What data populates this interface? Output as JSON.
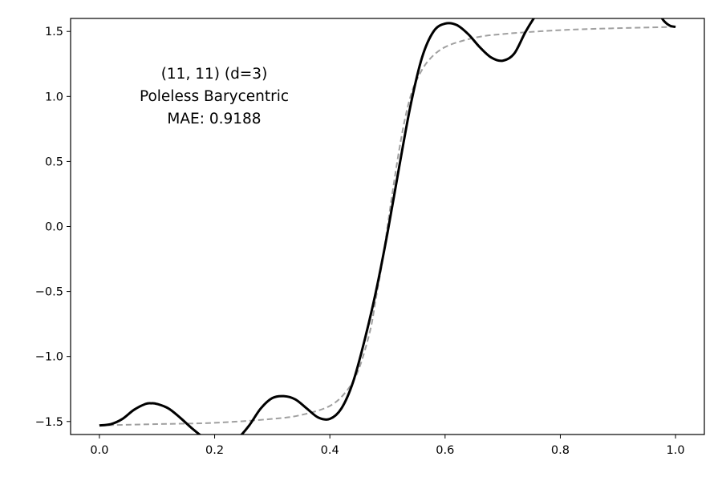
{
  "chart_data": {
    "type": "line",
    "title": "",
    "xlabel": "",
    "ylabel": "",
    "xlim": [
      -0.05,
      1.05
    ],
    "ylim": [
      -1.6,
      1.6
    ],
    "grid": false,
    "x_ticks": [
      0.0,
      0.2,
      0.4,
      0.6,
      0.8,
      1.0
    ],
    "x_tick_labels": [
      "0.0",
      "0.2",
      "0.4",
      "0.6",
      "0.8",
      "1.0"
    ],
    "y_ticks": [
      -1.5,
      -1.0,
      -0.5,
      0.0,
      0.5,
      1.0,
      1.5
    ],
    "y_tick_labels": [
      "−1.5",
      "−1.0",
      "−0.5",
      "0.0",
      "0.5",
      "1.0",
      "1.5"
    ],
    "annotation": [
      "(11, 11) (d=3)",
      "Poleless Barycentric",
      "MAE: 0.9188"
    ],
    "series": [
      {
        "style": "solid",
        "color": "#000000",
        "points": [
          [
            0.0,
            -1.53
          ],
          [
            0.02,
            -1.52
          ],
          [
            0.04,
            -1.48
          ],
          [
            0.06,
            -1.41
          ],
          [
            0.08,
            -1.365
          ],
          [
            0.09,
            -1.36
          ],
          [
            0.1,
            -1.365
          ],
          [
            0.12,
            -1.4
          ],
          [
            0.14,
            -1.47
          ],
          [
            0.16,
            -1.55
          ],
          [
            0.18,
            -1.62
          ],
          [
            0.2,
            -1.67
          ],
          [
            0.22,
            -1.675
          ],
          [
            0.24,
            -1.63
          ],
          [
            0.26,
            -1.53
          ],
          [
            0.28,
            -1.4
          ],
          [
            0.3,
            -1.32
          ],
          [
            0.32,
            -1.305
          ],
          [
            0.34,
            -1.33
          ],
          [
            0.36,
            -1.4
          ],
          [
            0.38,
            -1.47
          ],
          [
            0.4,
            -1.48
          ],
          [
            0.42,
            -1.4
          ],
          [
            0.44,
            -1.2
          ],
          [
            0.46,
            -0.88
          ],
          [
            0.48,
            -0.5
          ],
          [
            0.5,
            -0.05
          ],
          [
            0.52,
            0.45
          ],
          [
            0.54,
            0.93
          ],
          [
            0.56,
            1.3
          ],
          [
            0.58,
            1.5
          ],
          [
            0.6,
            1.56
          ],
          [
            0.62,
            1.55
          ],
          [
            0.64,
            1.48
          ],
          [
            0.66,
            1.38
          ],
          [
            0.68,
            1.3
          ],
          [
            0.7,
            1.275
          ],
          [
            0.72,
            1.33
          ],
          [
            0.74,
            1.5
          ],
          [
            0.76,
            1.64
          ],
          [
            0.78,
            1.75
          ],
          [
            0.8,
            1.85
          ],
          [
            0.85,
            1.95
          ],
          [
            0.9,
            1.95
          ],
          [
            0.94,
            1.8
          ],
          [
            0.97,
            1.64
          ],
          [
            0.98,
            1.58
          ],
          [
            0.99,
            1.545
          ],
          [
            1.0,
            1.535
          ]
        ]
      },
      {
        "style": "dashed",
        "color": "#a0a0a0",
        "points": [
          [
            0.0,
            -1.53
          ],
          [
            0.1,
            -1.52
          ],
          [
            0.2,
            -1.51
          ],
          [
            0.3,
            -1.48
          ],
          [
            0.35,
            -1.45
          ],
          [
            0.4,
            -1.38
          ],
          [
            0.43,
            -1.26
          ],
          [
            0.45,
            -1.1
          ],
          [
            0.47,
            -0.8
          ],
          [
            0.48,
            -0.55
          ],
          [
            0.49,
            -0.3
          ],
          [
            0.5,
            0.0
          ],
          [
            0.51,
            0.3
          ],
          [
            0.52,
            0.58
          ],
          [
            0.53,
            0.82
          ],
          [
            0.54,
            1.0
          ],
          [
            0.55,
            1.12
          ],
          [
            0.57,
            1.27
          ],
          [
            0.6,
            1.38
          ],
          [
            0.65,
            1.45
          ],
          [
            0.7,
            1.48
          ],
          [
            0.8,
            1.51
          ],
          [
            0.9,
            1.525
          ],
          [
            1.0,
            1.535
          ]
        ]
      }
    ]
  }
}
